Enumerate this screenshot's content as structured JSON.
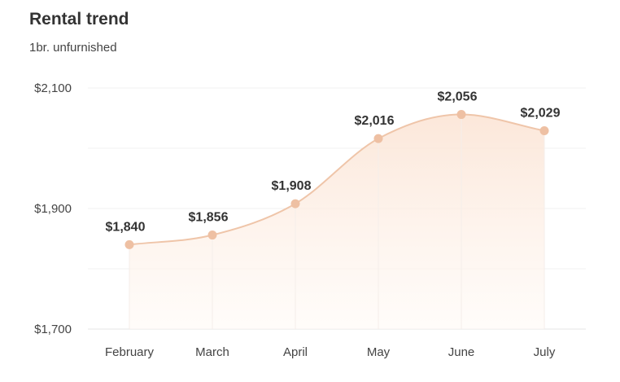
{
  "header": {
    "title": "Rental trend",
    "subtitle": "1br. unfurnished"
  },
  "colors": {
    "line": "#efc5a9",
    "point": "#eec0a3",
    "area_top": "#fbe3d3",
    "area_bottom": "#fffaf6"
  },
  "chart_data": {
    "type": "area",
    "title": "Rental trend",
    "subtitle": "1br. unfurnished",
    "xlabel": "",
    "ylabel": "",
    "categories": [
      "February",
      "March",
      "April",
      "May",
      "June",
      "July"
    ],
    "values": [
      1840,
      1856,
      1908,
      2016,
      2056,
      2029
    ],
    "value_labels": [
      "$1,840",
      "$1,856",
      "$1,908",
      "$2,016",
      "$2,056",
      "$2,029"
    ],
    "ylim": [
      1700,
      2100
    ],
    "yticks": [
      1700,
      1900,
      2100
    ],
    "ytick_labels": [
      "$1,700",
      "$1,900",
      "$2,100"
    ],
    "grid": true,
    "legend": "none"
  }
}
